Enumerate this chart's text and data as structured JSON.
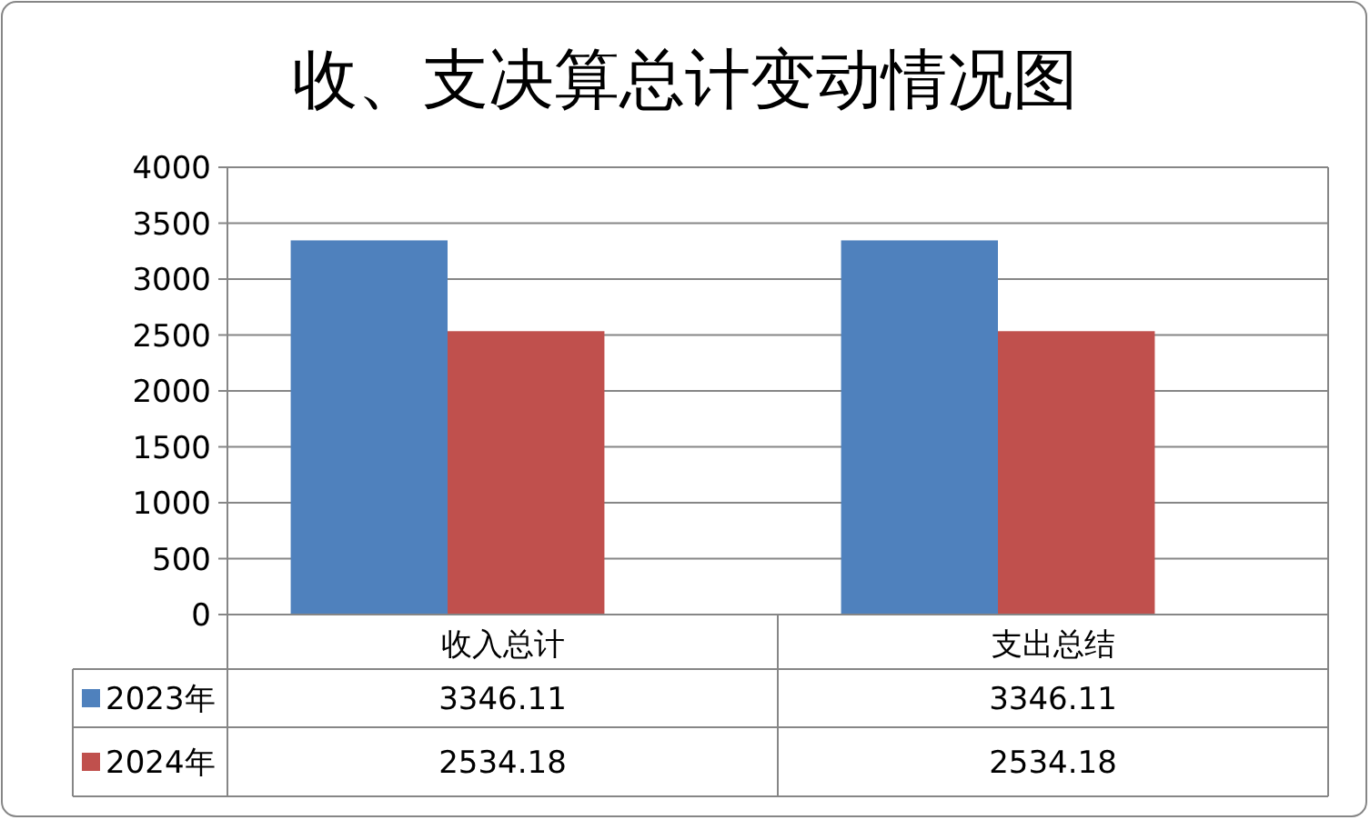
{
  "chart_data": {
    "type": "bar",
    "title": "收、支决算总计变动情况图",
    "categories": [
      "收入总计",
      "支出总结"
    ],
    "series": [
      {
        "name": "2023年",
        "color": "#4f81bd",
        "values": [
          3346.11,
          3346.11
        ]
      },
      {
        "name": "2024年",
        "color": "#c0504d",
        "values": [
          2534.18,
          2534.18
        ]
      }
    ],
    "ylim": [
      0,
      4000
    ],
    "yticks": [
      0,
      500,
      1000,
      1500,
      2000,
      2500,
      3000,
      3500,
      4000
    ],
    "grid": "y",
    "legend": "bottom",
    "data_labels": true
  }
}
